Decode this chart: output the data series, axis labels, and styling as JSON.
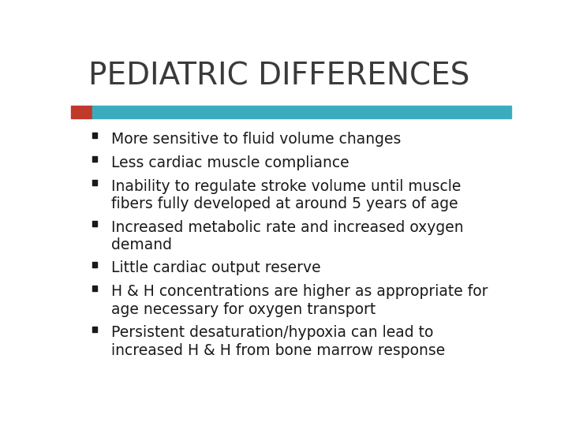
{
  "title": "PEDIATRIC DIFFERENCES",
  "title_fontsize": 28,
  "title_color": "#3a3a3a",
  "background_color": "#ffffff",
  "bar_red_color": "#c0392b",
  "bar_teal_color": "#3aacbe",
  "bullet_points": [
    "More sensitive to fluid volume changes",
    "Less cardiac muscle compliance",
    "Inability to regulate stroke volume until muscle\nfibers fully developed at around 5 years of age",
    "Increased metabolic rate and increased oxygen\ndemand",
    "Little cardiac output reserve",
    "H & H concentrations are higher as appropriate for\nage necessary for oxygen transport",
    "Persistent desaturation/hypoxia can lead to\nincreased H & H from bone marrow response"
  ],
  "text_fontsize": 13.5,
  "text_color": "#1a1a1a"
}
